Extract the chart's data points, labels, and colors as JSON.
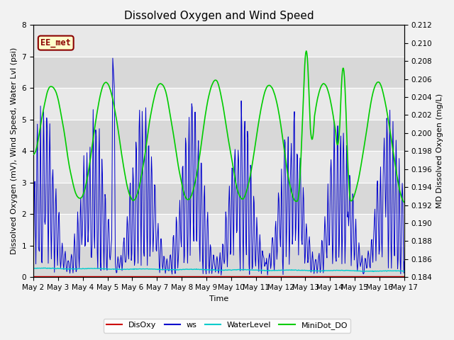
{
  "title": "Dissolved Oxygen and Wind Speed",
  "xlabel": "Time",
  "ylabel_left": "Dissolved Oxygen (mV), Wind Speed, Water Lvl (psi)",
  "ylabel_right": "MD Dissolved Oxygen (mg/L)",
  "ylim_left": [
    0.0,
    8.0
  ],
  "ylim_right": [
    0.184,
    0.212
  ],
  "yticks_left": [
    0.0,
    1.0,
    2.0,
    3.0,
    4.0,
    5.0,
    6.0,
    7.0,
    8.0
  ],
  "yticks_right": [
    0.184,
    0.186,
    0.188,
    0.19,
    0.192,
    0.194,
    0.196,
    0.198,
    0.2,
    0.202,
    0.204,
    0.206,
    0.208,
    0.21,
    0.212
  ],
  "xtick_labels": [
    "May 2",
    "May 3",
    "May 4",
    "May 5",
    "May 6",
    "May 7",
    "May 8",
    "May 9",
    "May 10",
    "May 11",
    "May 12",
    "May 13",
    "May 14",
    "May 15",
    "May 16",
    "May 17"
  ],
  "legend_labels": [
    "DisOxy",
    "ws",
    "WaterLevel",
    "MiniDot_DO"
  ],
  "legend_colors": [
    "#cc0000",
    "#0000cc",
    "#00cccc",
    "#00cc00"
  ],
  "box_label": "EE_met",
  "box_color": "#8b0000",
  "background_color": "#e8e8e8",
  "grid_color": "#ffffff",
  "title_fontsize": 11,
  "axis_fontsize": 8,
  "tick_fontsize": 7.5,
  "fig_width": 6.4,
  "fig_height": 4.8,
  "fig_dpi": 100
}
